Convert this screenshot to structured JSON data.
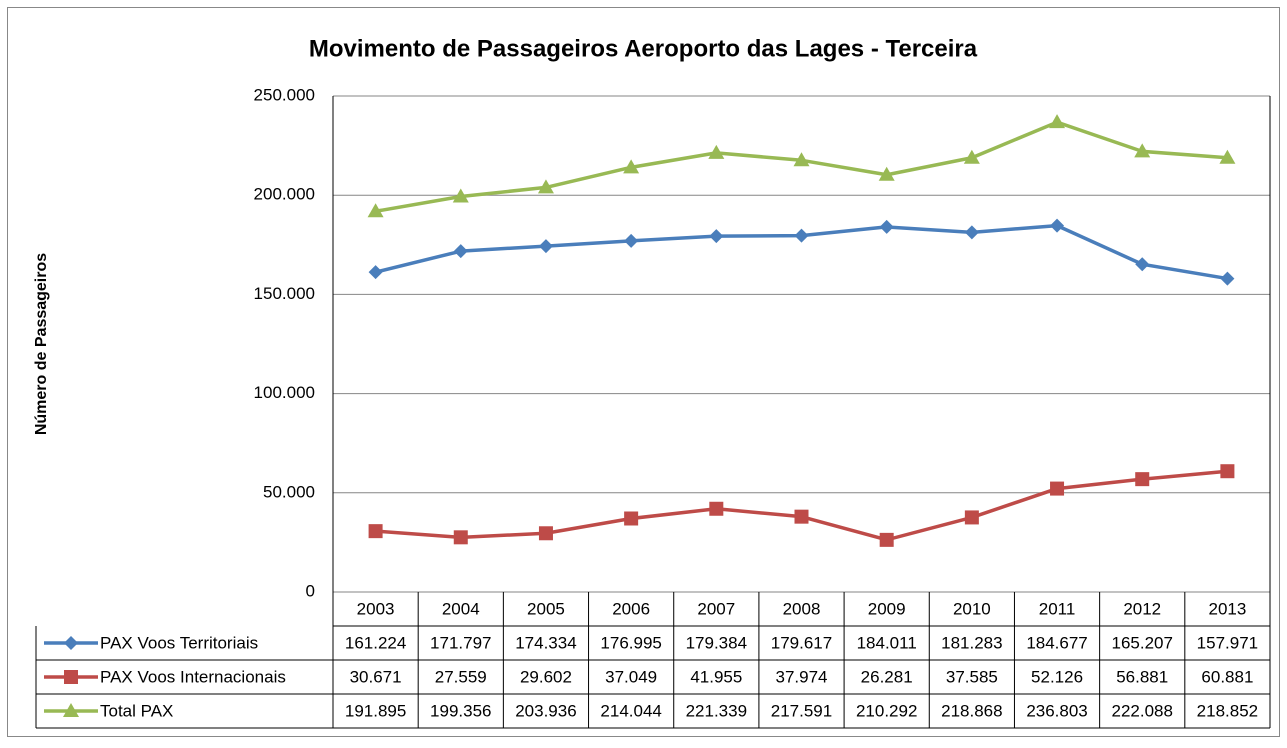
{
  "chart_data": {
    "type": "line",
    "title": "Movimento de Passageiros Aeroporto das Lages - Terceira",
    "y_label": "Número de Passageiros",
    "categories": [
      "2003",
      "2004",
      "2005",
      "2006",
      "2007",
      "2008",
      "2009",
      "2010",
      "2011",
      "2012",
      "2013"
    ],
    "series": [
      {
        "name": "PAX Voos Territoriais",
        "color": "#4a7ebb",
        "marker": "diamond",
        "values": [
          161224,
          171797,
          174334,
          176995,
          179384,
          179617,
          184011,
          181283,
          184677,
          165207,
          157971
        ],
        "value_labels": [
          "161.224",
          "171.797",
          "174.334",
          "176.995",
          "179.384",
          "179.617",
          "184.011",
          "181.283",
          "184.677",
          "165.207",
          "157.971"
        ]
      },
      {
        "name": "PAX Voos Internacionais",
        "color": "#be4b48",
        "marker": "square",
        "values": [
          30671,
          27559,
          29602,
          37049,
          41955,
          37974,
          26281,
          37585,
          52126,
          56881,
          60881
        ],
        "value_labels": [
          "30.671",
          "27.559",
          "29.602",
          "37.049",
          "41.955",
          "37.974",
          "26.281",
          "37.585",
          "52.126",
          "56.881",
          "60.881"
        ]
      },
      {
        "name": "Total PAX",
        "color": "#98b954",
        "marker": "triangle",
        "values": [
          191895,
          199356,
          203936,
          214044,
          221339,
          217591,
          210292,
          218868,
          236803,
          222088,
          218852
        ],
        "value_labels": [
          "191.895",
          "199.356",
          "203.936",
          "214.044",
          "221.339",
          "217.591",
          "210.292",
          "218.868",
          "236.803",
          "222.088",
          "218.852"
        ]
      }
    ],
    "ylim": [
      0,
      250000
    ],
    "yticks": [
      0,
      {
        "value": 50000,
        "label": "50.000"
      },
      {
        "value": 100000,
        "label": "100.000"
      },
      {
        "value": 150000,
        "label": "150.000"
      },
      {
        "value": 200000,
        "label": "200.000"
      },
      {
        "value": 250000,
        "label": "250.000"
      }
    ],
    "grid": true
  }
}
